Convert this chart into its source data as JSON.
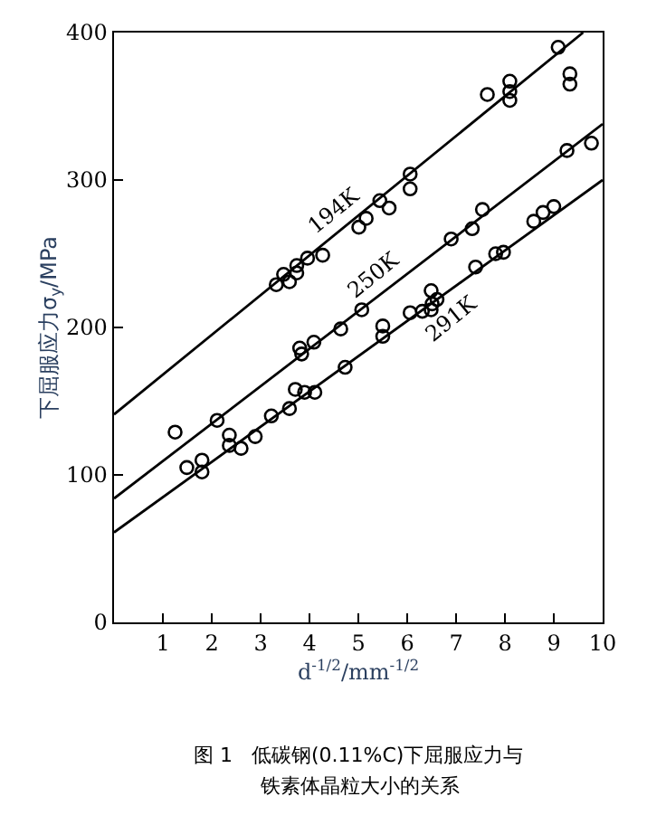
{
  "chart_data": {
    "type": "scatter",
    "xlabel": "d$^{-1/2}$/mm$^{-1/2}$",
    "ylabel": "下屈服应力σ$_{y}$/MPa",
    "xlim": [
      0,
      10
    ],
    "ylim": [
      0,
      400
    ],
    "xticks": [
      1,
      2,
      3,
      4,
      5,
      6,
      7,
      8,
      9,
      10
    ],
    "yticks": [
      0,
      100,
      200,
      300,
      400
    ],
    "legend": false,
    "marker": "circle",
    "series": [
      {
        "color": "#000000",
        "x": [
          3.32,
          3.47,
          3.59,
          3.74,
          3.74,
          3.96,
          4.27,
          5.01,
          5.16,
          5.44,
          5.63,
          6.06,
          6.06,
          7.64,
          8.1,
          8.1,
          8.1,
          9.09,
          9.33,
          9.33
        ],
        "values": [
          229,
          236,
          231,
          237,
          242,
          247,
          249,
          268,
          274,
          286,
          281,
          294,
          304,
          358,
          367,
          360,
          354,
          390,
          372,
          365
        ]
      },
      {
        "color": "#000000",
        "x": [
          1.25,
          2.11,
          3.8,
          3.84,
          4.09,
          4.64,
          5.07,
          6.9,
          7.33,
          7.54,
          9.27,
          9.77
        ],
        "values": [
          129,
          137,
          186,
          182,
          190,
          199,
          212,
          260,
          267,
          280,
          320,
          325
        ]
      },
      {
        "color": "#000000",
        "x": [
          1.49,
          1.8,
          1.8,
          2.36,
          2.36,
          2.6,
          2.89,
          3.22,
          3.59,
          3.71,
          3.9,
          4.11,
          4.73,
          5.5,
          5.5,
          6.06,
          6.31,
          6.49,
          6.51,
          6.61,
          6.49,
          7.4,
          7.81,
          7.97,
          8.59,
          8.78,
          9.0
        ],
        "values": [
          105,
          110,
          102,
          127,
          120,
          118,
          126,
          140,
          145,
          158,
          156,
          156,
          173,
          201,
          194,
          210,
          211,
          212,
          216,
          219,
          225,
          241,
          250,
          251,
          272,
          278,
          282
        ]
      },
      {
        "type": "line",
        "name": "194K",
        "color": "#000000",
        "marker": "none",
        "line_style": "solid",
        "x": [
          0,
          9.6
        ],
        "values": [
          141,
          400
        ]
      },
      {
        "type": "line",
        "name": "250K",
        "color": "#000000",
        "marker": "none",
        "line_style": "solid",
        "x": [
          0,
          10
        ],
        "values": [
          84,
          338
        ]
      },
      {
        "type": "line",
        "name": "291K",
        "color": "#000000",
        "marker": "none",
        "line_style": "solid",
        "x": [
          0,
          10
        ],
        "values": [
          61,
          300
        ]
      }
    ],
    "annotations": [
      "图 1   低碳钢(0.11%C)下屈服应力与",
      "铁素体晶粒大小的关系"
    ]
  }
}
